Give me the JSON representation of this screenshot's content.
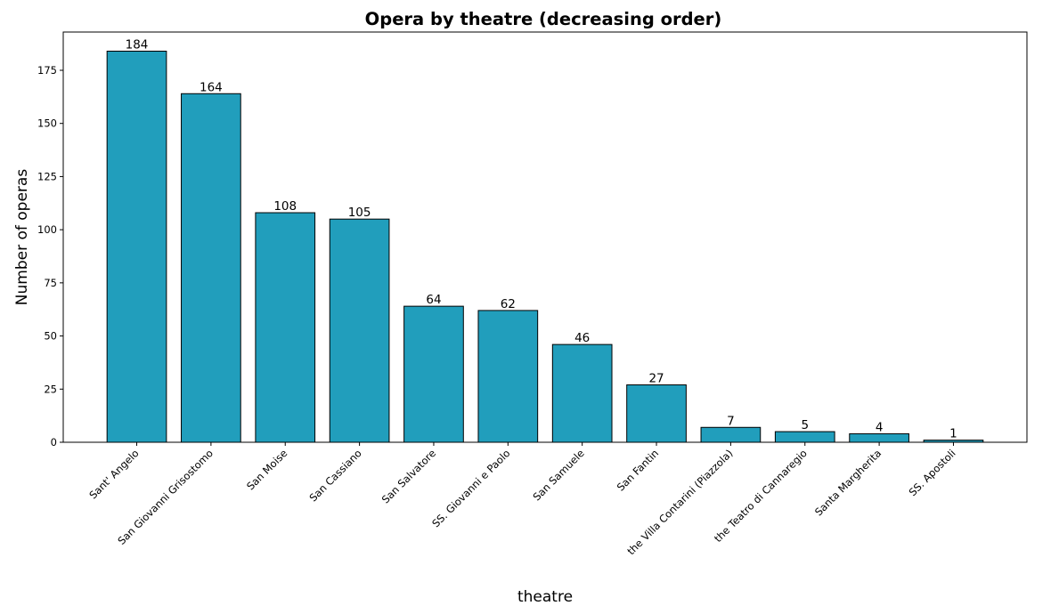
{
  "chart_data": {
    "type": "bar",
    "title": "Opera by theatre (decreasing order)",
    "xlabel": "theatre",
    "ylabel": "Number of operas",
    "categories": [
      "Sant' Angelo",
      "San Giovanni Grisostomo",
      "San Moise",
      "San Cassiano",
      "San Salvatore",
      "SS. Giovanni e Paolo",
      "San Samuele",
      "San Fantin",
      "the Villa Contarini (Piazzola)",
      "the Teatro di Cannaregio",
      "Santa Margherita",
      "SS. Apostoli"
    ],
    "values": [
      184,
      164,
      108,
      105,
      64,
      62,
      46,
      27,
      7,
      5,
      4,
      1
    ],
    "ylim": [
      0,
      193
    ],
    "yticks": [
      0,
      25,
      50,
      75,
      100,
      125,
      150,
      175
    ],
    "bar_color": "#219ebc",
    "edge_color": "#000000",
    "grid": false,
    "data_labels": true
  }
}
